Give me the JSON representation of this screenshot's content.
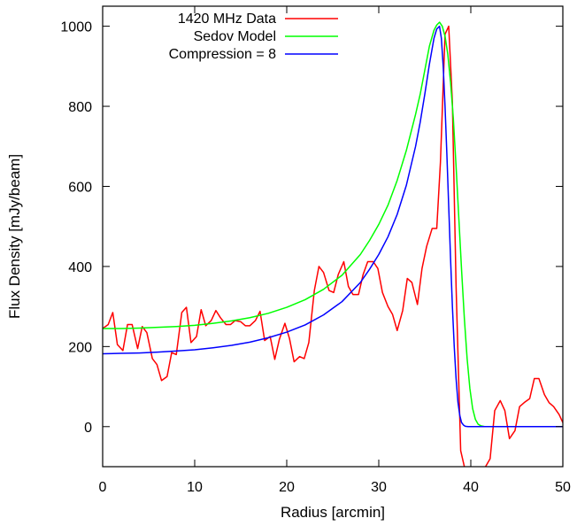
{
  "chart_data": {
    "type": "line",
    "title": "",
    "xlabel": "Radius [arcmin]",
    "ylabel": "Flux Density [mJy/beam]",
    "xlim": [
      0,
      50
    ],
    "ylim": [
      -100,
      1050
    ],
    "xticks": [
      0,
      10,
      20,
      30,
      40,
      50
    ],
    "yticks": [
      0,
      200,
      400,
      600,
      800,
      1000
    ],
    "grid": false,
    "legend_position": "top-left",
    "series": [
      {
        "name": "1420 MHz Data",
        "color": "#ff0000",
        "x": [
          0,
          0.6,
          1.1,
          1.6,
          2.2,
          2.7,
          3.2,
          3.8,
          4.3,
          4.8,
          5.4,
          5.9,
          6.4,
          7.0,
          7.5,
          8.0,
          8.6,
          9.1,
          9.6,
          10.2,
          10.7,
          11.2,
          11.8,
          12.3,
          12.8,
          13.4,
          13.9,
          14.4,
          15.0,
          15.5,
          16.0,
          16.6,
          17.1,
          17.6,
          18.2,
          18.7,
          19.2,
          19.8,
          20.3,
          20.8,
          21.4,
          21.9,
          22.4,
          23.0,
          23.5,
          24.0,
          24.6,
          25.1,
          25.6,
          26.2,
          26.7,
          27.2,
          27.8,
          28.3,
          28.8,
          29.4,
          29.9,
          30.4,
          31.0,
          31.5,
          32.0,
          32.6,
          33.1,
          33.6,
          34.2,
          34.7,
          35.2,
          35.8,
          36.3,
          36.7,
          37.2,
          37.6,
          38.0,
          38.4,
          38.9,
          39.4,
          40.0,
          40.5,
          41.0,
          41.6,
          42.1,
          42.6,
          43.2,
          43.7,
          44.2,
          44.8,
          45.3,
          45.8,
          46.4,
          46.9,
          47.4,
          48.0,
          48.5,
          49.0,
          49.6,
          50.0
        ],
        "y": [
          245,
          255,
          285,
          205,
          190,
          255,
          255,
          195,
          250,
          235,
          170,
          155,
          115,
          125,
          185,
          180,
          285,
          298,
          210,
          225,
          292,
          252,
          265,
          290,
          272,
          255,
          255,
          265,
          262,
          252,
          252,
          265,
          288,
          215,
          225,
          168,
          218,
          258,
          220,
          162,
          175,
          170,
          210,
          340,
          400,
          385,
          340,
          335,
          380,
          412,
          350,
          330,
          330,
          380,
          412,
          412,
          395,
          335,
          300,
          280,
          240,
          290,
          370,
          360,
          305,
          395,
          450,
          495,
          495,
          660,
          980,
          1000,
          810,
          350,
          -60,
          -110,
          -100,
          -120,
          -140,
          -100,
          -80,
          40,
          65,
          40,
          -30,
          -10,
          50,
          60,
          70,
          120,
          120,
          80,
          60,
          50,
          30,
          10
        ]
      },
      {
        "name": "Sedov Model",
        "color": "#00ff00",
        "x": [
          0,
          2,
          4,
          6,
          8,
          10,
          12,
          14,
          16,
          18,
          20,
          22,
          24,
          26,
          28,
          29,
          30,
          31,
          32,
          33,
          34,
          34.5,
          35,
          35.5,
          36,
          36.3,
          36.6,
          36.9,
          37.2,
          37.5,
          37.8,
          38.1,
          38.4,
          38.7,
          39.0,
          39.3,
          39.6,
          39.9,
          40.2,
          40.5,
          40.8,
          41.1,
          41.5,
          42,
          44,
          46,
          48,
          50
        ],
        "y": [
          245,
          245,
          246,
          248,
          250,
          253,
          258,
          264,
          272,
          283,
          298,
          317,
          343,
          378,
          430,
          465,
          505,
          553,
          615,
          690,
          780,
          830,
          890,
          950,
          990,
          1003,
          1010,
          1000,
          975,
          930,
          860,
          770,
          650,
          520,
          390,
          270,
          170,
          95,
          45,
          18,
          6,
          2,
          0,
          0,
          0,
          0,
          0,
          0
        ]
      },
      {
        "name": "Compression = 8",
        "color": "#0000ff",
        "x": [
          0,
          2,
          4,
          6,
          8,
          10,
          12,
          14,
          16,
          18,
          20,
          22,
          24,
          26,
          28,
          29,
          30,
          31,
          32,
          33,
          34,
          34.5,
          35,
          35.5,
          36,
          36.3,
          36.6,
          36.8,
          37.0,
          37.2,
          37.4,
          37.6,
          37.8,
          38.0,
          38.2,
          38.4,
          38.6,
          38.8,
          39.0,
          39.2,
          39.4,
          39.7,
          40,
          42,
          44,
          46,
          48,
          50
        ],
        "y": [
          182,
          183,
          184,
          186,
          189,
          192,
          197,
          203,
          211,
          222,
          236,
          254,
          279,
          312,
          360,
          393,
          430,
          474,
          530,
          603,
          700,
          760,
          830,
          905,
          970,
          993,
          1000,
          970,
          900,
          800,
          680,
          550,
          420,
          300,
          200,
          120,
          62,
          28,
          10,
          4,
          1,
          0,
          0,
          0,
          0,
          0,
          0,
          0
        ]
      }
    ]
  }
}
